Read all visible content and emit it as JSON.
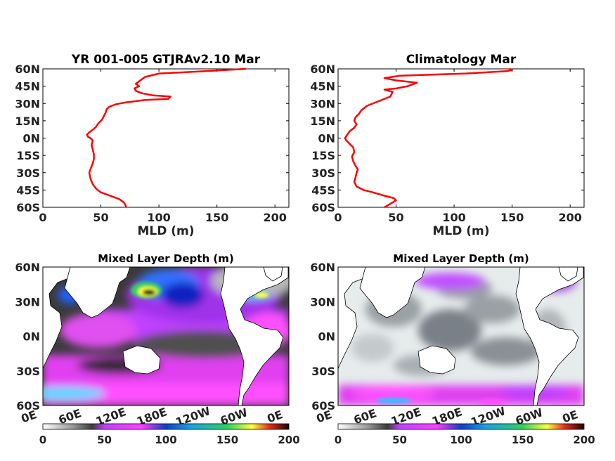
{
  "chart_data": [
    {
      "type": "line",
      "title": "YR 001-005 GTJRAv2.10 Mar",
      "xlabel": "MLD (m)",
      "ylabel": "",
      "xlim": [
        0,
        212
      ],
      "ylim": [
        -60,
        60
      ],
      "xticks": [
        "0",
        "50",
        "100",
        "150",
        "200"
      ],
      "yticks": [
        "60N",
        "45N",
        "30N",
        "15N",
        "0N",
        "15S",
        "30S",
        "45S",
        "60S"
      ],
      "color": "#ff0000",
      "series": [
        {
          "x": [
            72,
            70,
            66,
            58,
            50,
            46,
            43,
            41,
            40,
            41,
            43,
            44,
            44,
            43,
            42,
            43,
            41,
            39,
            38,
            40,
            44,
            46,
            48,
            49,
            51,
            53,
            54,
            55,
            57,
            62,
            66,
            72,
            88,
            108,
            110,
            95,
            85,
            80,
            79,
            83,
            80,
            84,
            88,
            100,
            140,
            175
          ],
          "y": [
            -60,
            -56,
            -53,
            -50,
            -47,
            -44,
            -40,
            -35,
            -30,
            -27,
            -22,
            -18,
            -14,
            -10,
            -6,
            -2,
            0,
            1,
            3,
            5,
            8,
            10,
            13,
            14,
            16,
            20,
            22,
            25,
            27,
            29,
            30,
            31,
            33,
            34,
            36,
            37,
            39,
            41,
            43,
            45,
            47,
            50,
            53,
            56,
            58,
            60
          ]
        }
      ]
    },
    {
      "type": "line",
      "title": "Climatology Mar",
      "xlabel": "MLD (m)",
      "ylabel": "",
      "xlim": [
        0,
        212
      ],
      "ylim": [
        -60,
        60
      ],
      "xticks": [
        "0",
        "50",
        "100",
        "150",
        "200"
      ],
      "yticks": [
        "60N",
        "45N",
        "30N",
        "15N",
        "0N",
        "15S",
        "30S",
        "45S",
        "60S"
      ],
      "color": "#ff0000",
      "series": [
        {
          "x": [
            40,
            45,
            50,
            48,
            40,
            30,
            22,
            16,
            14,
            15,
            16,
            17,
            15,
            13,
            12,
            14,
            13,
            10,
            7,
            6,
            8,
            10,
            14,
            16,
            14,
            15,
            18,
            20,
            25,
            35,
            45,
            47,
            40,
            50,
            60,
            68,
            50,
            40,
            53,
            110,
            145,
            150,
            148
          ],
          "y": [
            -60,
            -57,
            -54,
            -52,
            -50,
            -47,
            -45,
            -42,
            -38,
            -34,
            -30,
            -27,
            -24,
            -20,
            -16,
            -12,
            -8,
            -5,
            -2,
            0,
            3,
            6,
            9,
            12,
            15,
            18,
            21,
            24,
            28,
            32,
            36,
            40,
            42,
            43,
            45,
            48,
            50,
            52,
            54,
            56,
            58,
            59,
            60
          ]
        }
      ]
    },
    {
      "type": "heatmap",
      "title": "Mixed Layer Depth (m)",
      "xlabel": "",
      "ylabel": "",
      "xticks": [
        "0E",
        "60E",
        "120E",
        "180E",
        "120W",
        "60W",
        "0E"
      ],
      "yticks": [
        "60N",
        "30N",
        "0N",
        "30S",
        "60S"
      ],
      "colorbar": {
        "ticks": [
          "0",
          "50",
          "100",
          "150",
          "200"
        ],
        "range": [
          0,
          200
        ]
      }
    },
    {
      "type": "heatmap",
      "title": "Mixed Layer Depth (m)",
      "xlabel": "",
      "ylabel": "",
      "xticks": [
        "0E",
        "60E",
        "120E",
        "180E",
        "120W",
        "60W",
        "0E"
      ],
      "yticks": [
        "60N",
        "30N",
        "0N",
        "30S",
        "60S"
      ],
      "colorbar": {
        "ticks": [
          "0",
          "50",
          "100",
          "150",
          "200"
        ],
        "range": [
          0,
          200
        ]
      }
    }
  ]
}
